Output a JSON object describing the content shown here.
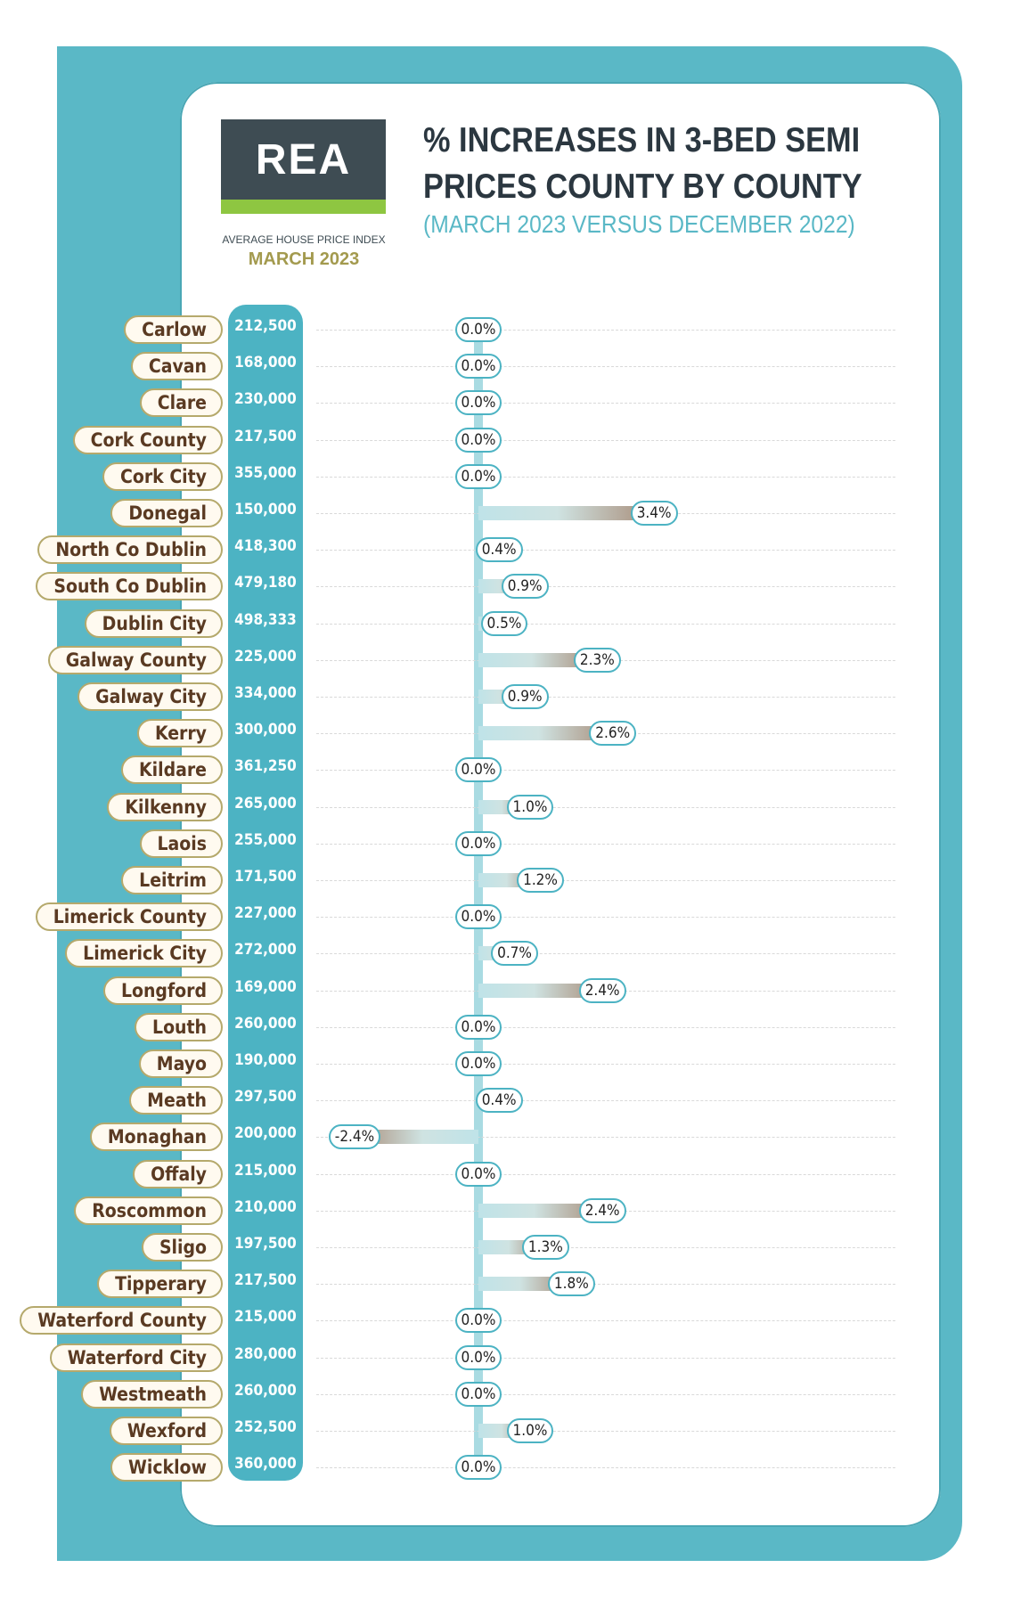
{
  "logo": {
    "text": "REA",
    "caption": "AVERAGE HOUSE PRICE INDEX",
    "date": "MARCH 2023"
  },
  "chart_data": {
    "type": "bar",
    "title": "% INCREASES IN 3-BED SEMI PRICES COUNTY BY COUNTY",
    "subtitle": "(MARCH 2023 VERSUS DECEMBER 2022)",
    "categories": [
      "Carlow",
      "Cavan",
      "Clare",
      "Cork County",
      "Cork City",
      "Donegal",
      "North Co Dublin",
      "South Co Dublin",
      "Dublin City",
      "Galway County",
      "Galway City",
      "Kerry",
      "Kildare",
      "Kilkenny",
      "Laois",
      "Leitrim",
      "Limerick County",
      "Limerick City",
      "Longford",
      "Louth",
      "Mayo",
      "Meath",
      "Monaghan",
      "Offaly",
      "Roscommon",
      "Sligo",
      "Tipperary",
      "Waterford County",
      "Waterford City",
      "Westmeath",
      "Wexford",
      "Wicklow"
    ],
    "prices": [
      "212,500",
      "168,000",
      "230,000",
      "217,500",
      "355,000",
      "150,000",
      "418,300",
      "479,180",
      "498,333",
      "225,000",
      "334,000",
      "300,000",
      "361,250",
      "265,000",
      "255,000",
      "171,500",
      "227,000",
      "272,000",
      "169,000",
      "260,000",
      "190,000",
      "297,500",
      "200,000",
      "215,000",
      "210,000",
      "197,500",
      "217,500",
      "215,000",
      "280,000",
      "260,000",
      "252,500",
      "360,000"
    ],
    "values": [
      0.0,
      0.0,
      0.0,
      0.0,
      0.0,
      3.4,
      0.4,
      0.9,
      0.5,
      2.3,
      0.9,
      2.6,
      0.0,
      1.0,
      0.0,
      1.2,
      0.0,
      0.7,
      2.4,
      0.0,
      0.0,
      0.4,
      -2.4,
      0.0,
      2.4,
      1.3,
      1.8,
      0.0,
      0.0,
      0.0,
      1.0,
      0.0
    ],
    "labels": [
      "0.0%",
      "0.0%",
      "0.0%",
      "0.0%",
      "0.0%",
      "3.4%",
      "0.4%",
      "0.9%",
      "0.5%",
      "2.3%",
      "0.9%",
      "2.6%",
      "0.0%",
      "1.0%",
      "0.0%",
      "1.2%",
      "0.0%",
      "0.7%",
      "2.4%",
      "0.0%",
      "0.0%",
      "0.4%",
      "-2.4%",
      "0.0%",
      "2.4%",
      "1.3%",
      "1.8%",
      "0.0%",
      "0.0%",
      "0.0%",
      "1.0%",
      "0.0%"
    ]
  },
  "colors": {
    "teal": "#4cb3c3",
    "dark": "#2b3740",
    "brown": "#5a3a22",
    "green": "#8ec641"
  }
}
